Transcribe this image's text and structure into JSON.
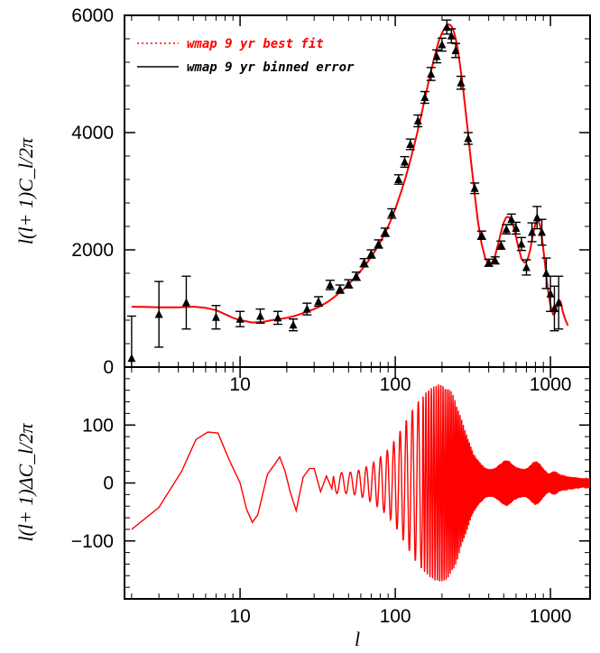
{
  "colors": {
    "fit": "#ff0000",
    "data": "#000000"
  },
  "chart_data": [
    {
      "type": "line",
      "panel": "top",
      "xscale": "log",
      "xlim": [
        1.8,
        1800
      ],
      "ylim": [
        0,
        6000
      ],
      "xticks": [
        10,
        100,
        1000
      ],
      "xtick_labels": [
        "10",
        "100",
        "1000"
      ],
      "yticks": [
        0,
        2000,
        4000,
        6000
      ],
      "ytick_labels": [
        "0",
        "2000",
        "4000",
        "6000"
      ],
      "ylabel": "l(l+ 1)C_l/2π",
      "legend": {
        "placement": "top-left",
        "entries": [
          {
            "label": "wmap 9 yr best fit",
            "style": "dotted",
            "color": "#ff0000"
          },
          {
            "label": "wmap 9 yr binned error",
            "style": "solid",
            "color": "#000000"
          }
        ]
      },
      "series": [
        {
          "name": "wmap 9 yr best fit",
          "style": "line",
          "color": "#ff0000",
          "x": [
            2,
            3,
            4,
            5,
            6,
            7,
            8,
            9,
            10,
            12,
            14,
            16,
            18,
            20,
            23,
            26,
            30,
            34,
            38,
            42,
            47,
            52,
            58,
            65,
            72,
            80,
            90,
            100,
            110,
            120,
            130,
            140,
            150,
            160,
            170,
            180,
            190,
            200,
            210,
            220,
            230,
            240,
            250,
            260,
            275,
            290,
            305,
            320,
            340,
            360,
            380,
            400,
            420,
            440,
            460,
            480,
            500,
            520,
            540,
            560,
            580,
            600,
            620,
            650,
            680,
            710,
            740,
            770,
            800,
            830,
            860,
            890,
            920,
            950,
            980,
            1010,
            1040,
            1070,
            1100,
            1130,
            1160,
            1200,
            1250,
            1300
          ],
          "y": [
            1030,
            1020,
            1020,
            1030,
            1010,
            970,
            900,
            840,
            800,
            760,
            770,
            800,
            820,
            840,
            880,
            930,
            990,
            1060,
            1140,
            1230,
            1340,
            1460,
            1600,
            1760,
            1930,
            2130,
            2400,
            2700,
            3020,
            3350,
            3700,
            4050,
            4400,
            4740,
            5050,
            5320,
            5550,
            5700,
            5800,
            5850,
            5820,
            5700,
            5500,
            5200,
            4700,
            4150,
            3600,
            3100,
            2500,
            2100,
            1850,
            1760,
            1780,
            1900,
            2100,
            2300,
            2470,
            2560,
            2560,
            2500,
            2380,
            2220,
            2050,
            1850,
            1780,
            1820,
            2000,
            2250,
            2450,
            2520,
            2400,
            2120,
            1780,
            1450,
            1180,
            1000,
            900,
            920,
            1050,
            1150,
            1120,
            950,
            800,
            700
          ]
        },
        {
          "name": "wmap 9 yr binned error",
          "style": "points",
          "color": "#000000",
          "x": [
            2,
            3,
            4.5,
            7,
            10,
            13.5,
            17.5,
            22,
            27,
            32,
            38,
            44,
            50,
            56,
            63,
            70,
            78,
            86,
            95,
            105,
            115,
            125,
            140,
            155,
            170,
            185,
            200,
            215,
            230,
            245,
            265,
            295,
            325,
            360,
            400,
            440,
            480,
            520,
            560,
            600,
            650,
            700,
            760,
            820,
            880,
            940,
            1000,
            1060,
            1130
          ],
          "y": [
            150,
            900,
            1100,
            850,
            820,
            870,
            840,
            720,
            990,
            1120,
            1400,
            1330,
            1420,
            1550,
            1780,
            1930,
            2100,
            2300,
            2620,
            3200,
            3500,
            3800,
            4200,
            4600,
            5000,
            5300,
            5500,
            5800,
            5650,
            5400,
            4850,
            3900,
            3050,
            2250,
            1780,
            1820,
            2080,
            2350,
            2520,
            2370,
            2100,
            1700,
            2300,
            2550,
            2300,
            1600,
            1250,
            1000,
            1100
          ],
          "err": [
            720,
            560,
            450,
            200,
            130,
            120,
            110,
            100,
            100,
            80,
            80,
            70,
            70,
            70,
            70,
            70,
            70,
            70,
            80,
            80,
            90,
            90,
            100,
            100,
            110,
            110,
            110,
            120,
            120,
            120,
            110,
            100,
            90,
            70,
            60,
            60,
            70,
            80,
            90,
            100,
            110,
            130,
            160,
            190,
            220,
            260,
            300,
            380,
            450
          ]
        }
      ]
    },
    {
      "type": "line",
      "panel": "bottom",
      "xscale": "log",
      "xlim": [
        1.8,
        1800
      ],
      "ylim": [
        -200,
        200
      ],
      "xticks": [
        10,
        100,
        1000
      ],
      "xtick_labels": [
        "10",
        "100",
        "1000"
      ],
      "yticks": [
        -100,
        0,
        100
      ],
      "ytick_labels": [
        "−100",
        "0",
        "100"
      ],
      "xlabel": "l",
      "ylabel": "l(l+ 1)ΔC_l/2π",
      "series": [
        {
          "style": "oscillation",
          "color": "#ff0000",
          "x": [
            2,
            3,
            4,
            5,
            6,
            7,
            8,
            9,
            10,
            12,
            14,
            16,
            18,
            20,
            23,
            26,
            30,
            34,
            38,
            42,
            47,
            52,
            58,
            65,
            72,
            80,
            90,
            100,
            110,
            120,
            130,
            140,
            150,
            160,
            170,
            180,
            190,
            200,
            210,
            220,
            230,
            240,
            250,
            260,
            275,
            290,
            305,
            320,
            340,
            360,
            380,
            400,
            420,
            440,
            460,
            480,
            500,
            520,
            540,
            560,
            580,
            600,
            620,
            650,
            680,
            710,
            740,
            770,
            800,
            830,
            860,
            890,
            920,
            950,
            980,
            1010,
            1040,
            1070,
            1100,
            1130,
            1160,
            1200,
            1250,
            1300,
            1400,
            1500,
            1600,
            1700,
            1800
          ],
          "amplitude": [
            80,
            45,
            55,
            85,
            88,
            85,
            70,
            50,
            30,
            65,
            55,
            42,
            45,
            42,
            38,
            28,
            25,
            22,
            20,
            18,
            18,
            19,
            22,
            28,
            35,
            45,
            58,
            75,
            95,
            112,
            128,
            140,
            150,
            158,
            164,
            168,
            170,
            170,
            168,
            164,
            158,
            148,
            135,
            120,
            100,
            82,
            65,
            50,
            40,
            32,
            26,
            24,
            24,
            26,
            30,
            34,
            38,
            40,
            38,
            34,
            30,
            28,
            26,
            25,
            24,
            26,
            30,
            35,
            38,
            36,
            32,
            26,
            22,
            18,
            16,
            18,
            20,
            20,
            18,
            15,
            14,
            13,
            12,
            11,
            10,
            9,
            8,
            8,
            8
          ],
          "oscillation_period_l": 6.5
        }
      ]
    }
  ]
}
